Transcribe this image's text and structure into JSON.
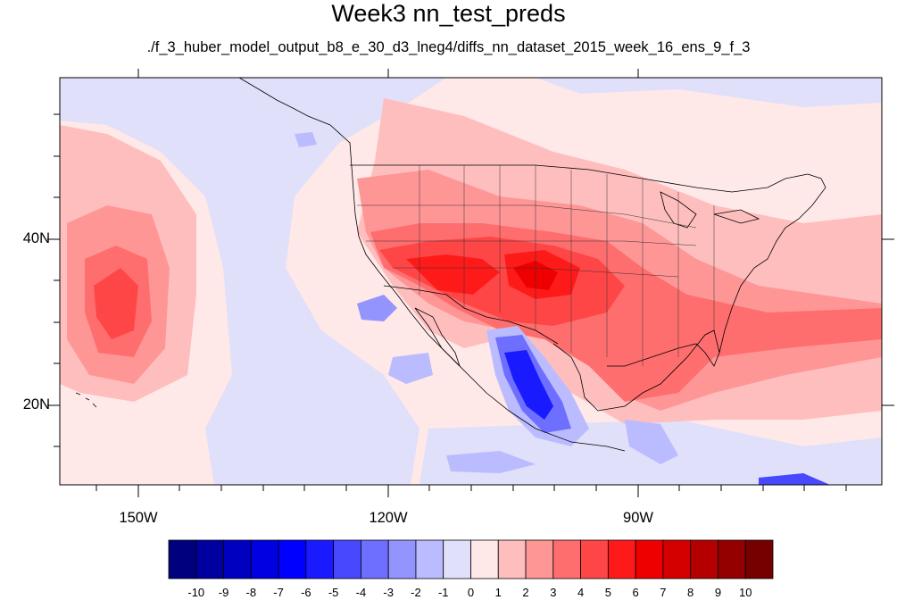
{
  "title": "Week3 nn_test_preds",
  "subtitle": "./f_3_huber_model_output_b8_e_30_d3_lneg4/diffs_nn_dataset_2015_week_16_ens_9_f_3",
  "lon_labels": [
    "150W",
    "120W",
    "90W"
  ],
  "lat_labels": [
    "40N",
    "20N"
  ],
  "colorbar": {
    "levels": [
      "-10",
      "-9",
      "-8",
      "-7",
      "-6",
      "-5",
      "-4",
      "-3",
      "-2",
      "-1",
      "0",
      "1",
      "2",
      "3",
      "4",
      "5",
      "6",
      "7",
      "8",
      "9",
      "10"
    ],
    "colors": [
      "#00007f",
      "#0000a0",
      "#0000c0",
      "#0000e0",
      "#0000ff",
      "#1a1aff",
      "#4848ff",
      "#6e6eff",
      "#9494ff",
      "#bbbbff",
      "#e0e0fa",
      "#ffe8e8",
      "#ffbebe",
      "#ff9696",
      "#ff6e6e",
      "#ff4646",
      "#ff1a1a",
      "#ee0000",
      "#d40000",
      "#b40000",
      "#940000",
      "#760000"
    ]
  }
}
